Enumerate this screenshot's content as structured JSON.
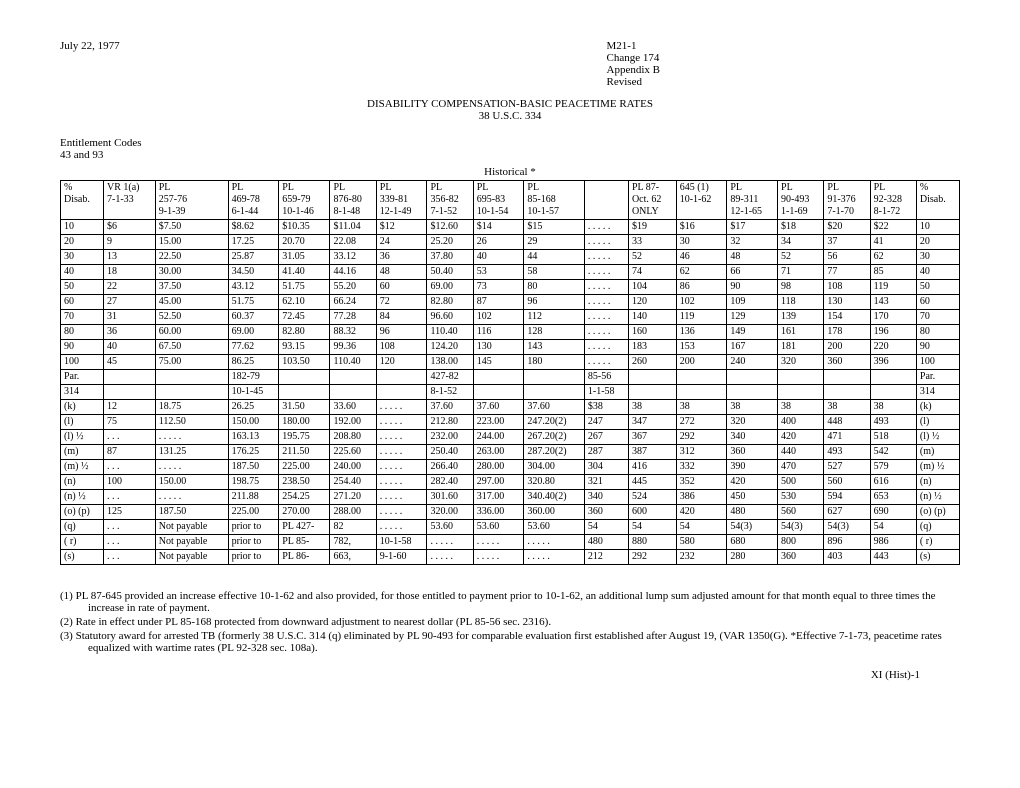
{
  "header": {
    "date": "July 22, 1977",
    "ref1": "M21-1",
    "ref2": "Change 174",
    "ref3": "Appendix B",
    "ref4": "Revised"
  },
  "title": {
    "line1": "DISABILITY COMPENSATION-BASIC PEACETIME RATES",
    "line2": "38 U.S.C. 334"
  },
  "entitlement": {
    "line1": "Entitlement Codes",
    "line2": "43 and 93"
  },
  "historical_label": "Historical *",
  "table": {
    "header_rows": [
      [
        "%",
        "VR 1(a)",
        "PL",
        "PL",
        "PL",
        "PL",
        "PL",
        "PL",
        "PL",
        "PL",
        "",
        "PL 87-",
        "645 (1)",
        "PL",
        "PL",
        "PL",
        "PL",
        "%"
      ],
      [
        "Disab.",
        "7-1-33",
        "257-76",
        "469-78",
        "659-79",
        "876-80",
        "339-81",
        "356-82",
        "695-83",
        "85-168",
        "",
        "Oct. 62",
        "10-1-62",
        "89-311",
        "90-493",
        "91-376",
        "92-328",
        "Disab."
      ],
      [
        "",
        "",
        "9-1-39",
        "6-1-44",
        "10-1-46",
        "8-1-48",
        "12-1-49",
        "7-1-52",
        "10-1-54",
        "10-1-57",
        "",
        "ONLY",
        "",
        "12-1-65",
        "1-1-69",
        "7-1-70",
        "8-1-72",
        ""
      ]
    ],
    "data_rows": [
      [
        "10",
        "$6",
        "$7.50",
        "$8.62",
        "$10.35",
        "$11.04",
        "$12",
        "$12.60",
        "$14",
        "$15",
        ". . . . .",
        "$19",
        "$16",
        "$17",
        "$18",
        "$20",
        "$22",
        "10"
      ],
      [
        "20",
        "9",
        "15.00",
        "17.25",
        "20.70",
        "22.08",
        "24",
        "25.20",
        "26",
        "29",
        ". . . . .",
        "33",
        "30",
        "32",
        "34",
        "37",
        "41",
        "20"
      ],
      [
        "30",
        "13",
        "22.50",
        "25.87",
        "31.05",
        "33.12",
        "36",
        "37.80",
        "40",
        "44",
        ". . . . .",
        "52",
        "46",
        "48",
        "52",
        "56",
        "62",
        "30"
      ],
      [
        "40",
        "18",
        "30.00",
        "34.50",
        "41.40",
        "44.16",
        "48",
        "50.40",
        "53",
        "58",
        ". . . . .",
        "74",
        "62",
        "66",
        "71",
        "77",
        "85",
        "40"
      ],
      [
        "50",
        "22",
        "37.50",
        "43.12",
        "51.75",
        "55.20",
        "60",
        "69.00",
        "73",
        "80",
        ". . . . .",
        "104",
        "86",
        "90",
        "98",
        "108",
        "119",
        "50"
      ],
      [
        "60",
        "27",
        "45.00",
        "51.75",
        "62.10",
        "66.24",
        "72",
        "82.80",
        "87",
        "96",
        ". . . . .",
        "120",
        "102",
        "109",
        "118",
        "130",
        "143",
        "60"
      ],
      [
        "70",
        "31",
        "52.50",
        "60.37",
        "72.45",
        "77.28",
        "84",
        "96.60",
        "102",
        "112",
        ". . . . .",
        "140",
        "119",
        "129",
        "139",
        "154",
        "170",
        "70"
      ],
      [
        "80",
        "36",
        "60.00",
        "69.00",
        "82.80",
        "88.32",
        "96",
        "110.40",
        "116",
        "128",
        ". . . . .",
        "160",
        "136",
        "149",
        "161",
        "178",
        "196",
        "80"
      ],
      [
        "90",
        "40",
        "67.50",
        "77.62",
        "93.15",
        "99.36",
        "108",
        "124.20",
        "130",
        "143",
        ". . . . .",
        "183",
        "153",
        "167",
        "181",
        "200",
        "220",
        "90"
      ],
      [
        "100",
        "45",
        "75.00",
        "86.25",
        "103.50",
        "110.40",
        "120",
        "138.00",
        "145",
        "180",
        ". . . . .",
        "260",
        "200",
        "240",
        "320",
        "360",
        "396",
        "100"
      ],
      [
        "Par.",
        "",
        "",
        "182-79",
        "",
        "",
        "",
        "427-82",
        "",
        "",
        "85-56",
        "",
        "",
        "",
        "",
        "",
        "",
        "Par."
      ],
      [
        "314",
        "",
        "",
        "10-1-45",
        "",
        "",
        "",
        "8-1-52",
        "",
        "",
        "1-1-58",
        "",
        "",
        "",
        "",
        "",
        "",
        "314"
      ],
      [
        "(k)",
        "12",
        "18.75",
        "26.25",
        "31.50",
        "33.60",
        ". . . . .",
        "37.60",
        "37.60",
        "37.60",
        "$38",
        "38",
        "38",
        "38",
        "38",
        "38",
        "38",
        "(k)"
      ],
      [
        "(l)",
        "75",
        "112.50",
        "150.00",
        "180.00",
        "192.00",
        ". . . . .",
        "212.80",
        "223.00",
        "247.20(2)",
        "247",
        "347",
        "272",
        "320",
        "400",
        "448",
        "493",
        "(l)"
      ],
      [
        "(l) ½",
        ". . .",
        ". . . . .",
        "163.13",
        "195.75",
        "208.80",
        ". . . . .",
        "232.00",
        "244.00",
        "267.20(2)",
        "267",
        "367",
        "292",
        "340",
        "420",
        "471",
        "518",
        "(l) ½"
      ],
      [
        "(m)",
        "87",
        "131.25",
        "176.25",
        "211.50",
        "225.60",
        ". . . . .",
        "250.40",
        "263.00",
        "287.20(2)",
        "287",
        "387",
        "312",
        "360",
        "440",
        "493",
        "542",
        "(m)"
      ],
      [
        "(m) ½",
        ". . .",
        ". . . . .",
        "187.50",
        "225.00",
        "240.00",
        ". . . . .",
        "266.40",
        "280.00",
        "304.00",
        "304",
        "416",
        "332",
        "390",
        "470",
        "527",
        "579",
        "(m) ½"
      ],
      [
        "(n)",
        "100",
        "150.00",
        "198.75",
        "238.50",
        "254.40",
        ". . . . .",
        "282.40",
        "297.00",
        "320.80",
        "321",
        "445",
        "352",
        "420",
        "500",
        "560",
        "616",
        "(n)"
      ],
      [
        "(n) ½",
        ". . .",
        ". . . . .",
        "211.88",
        "254.25",
        "271.20",
        ". . . . .",
        "301.60",
        "317.00",
        "340.40(2)",
        "340",
        "524",
        "386",
        "450",
        "530",
        "594",
        "653",
        "(n) ½"
      ],
      [
        "(o) (p)",
        "125",
        "187.50",
        "225.00",
        "270.00",
        "288.00",
        ". . . . .",
        "320.00",
        "336.00",
        "360.00",
        "360",
        "600",
        "420",
        "480",
        "560",
        "627",
        "690",
        "(o) (p)"
      ],
      [
        "(q)",
        ". . .",
        "Not payable",
        "prior to",
        "PL 427-",
        "82",
        ". . . . .",
        "53.60",
        "53.60",
        "53.60",
        "54",
        "54",
        "54",
        "54(3)",
        "54(3)",
        "54(3)",
        "54",
        "(q)"
      ],
      [
        "( r)",
        ". . .",
        "Not payable",
        "prior to",
        "PL 85-",
        "782,",
        "10-1-58",
        ". . . . .",
        ". . . . .",
        ". . . . .",
        "480",
        "880",
        "580",
        "680",
        "800",
        "896",
        "986",
        "( r)"
      ],
      [
        "(s)",
        ". . .",
        "Not payable",
        "prior to",
        "PL 86-",
        "663,",
        "9-1-60",
        ". . . . .",
        ". . . . .",
        ". . . . .",
        "212",
        "292",
        "232",
        "280",
        "360",
        "403",
        "443",
        "(s)"
      ]
    ]
  },
  "notes": {
    "n1": "(1)  PL 87-645 provided an increase effective 10-1-62 and also provided, for those entitled to payment prior to 10-1-62, an additional lump sum adjusted amount for that month equal to three times the increase in rate of payment.",
    "n2": "(2)  Rate in effect under PL 85-168 protected from downward adjustment to nearest dollar (PL 85-56 sec. 2316).",
    "n3": "(3)  Statutory award for arrested TB (formerly 38 U.S.C. 314 (q) eliminated by PL 90-493 for comparable evaluation first established after August 19, (VAR 1350(G). *Effective 7-1-73, peacetime rates equalized with wartime rates (PL 92-328 sec. 108a)."
  },
  "page_num": "XI (Hist)-1"
}
